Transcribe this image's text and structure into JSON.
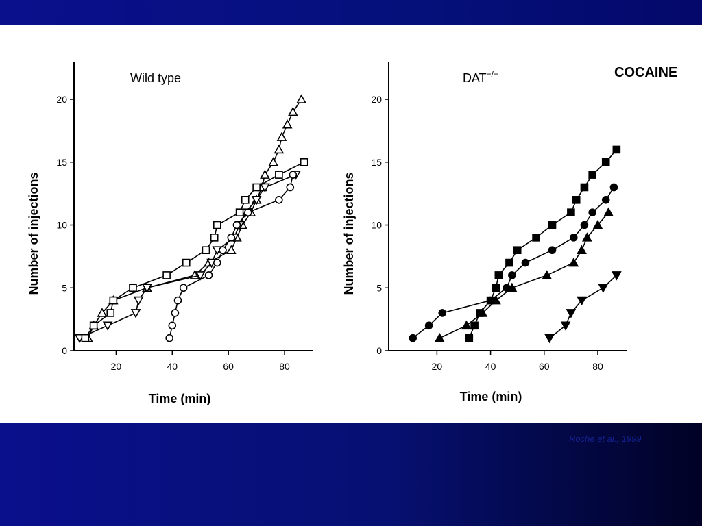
{
  "slide_title": "COCAINE",
  "citation": "Roche et al., 1999",
  "chart_data": [
    {
      "type": "line",
      "title": "Wild type",
      "xlabel": "Time (min)",
      "ylabel": "Number of injections",
      "xlim": [
        5,
        90
      ],
      "ylim": [
        0,
        23
      ],
      "xticks": [
        20,
        40,
        60,
        80
      ],
      "yticks": [
        0,
        5,
        10,
        15,
        20
      ],
      "grid": false,
      "legend": "none",
      "series": [
        {
          "marker": "triangle-up",
          "filled": false,
          "x": [
            10,
            12,
            15,
            19,
            31,
            48,
            53,
            61,
            63,
            65,
            68,
            70,
            72,
            73,
            76,
            78,
            79,
            81,
            83,
            86
          ],
          "y": [
            1,
            2,
            3,
            4,
            5,
            6,
            7,
            8,
            9,
            10,
            11,
            12,
            13,
            14,
            15,
            16,
            17,
            18,
            19,
            20
          ]
        },
        {
          "marker": "triangle-down",
          "filled": false,
          "x": [
            7,
            17,
            27,
            28,
            31,
            50,
            54,
            56,
            62,
            64,
            66,
            70,
            73,
            84
          ],
          "y": [
            1,
            2,
            3,
            4,
            5,
            6,
            7,
            8,
            9,
            10,
            11,
            12,
            13,
            14
          ]
        },
        {
          "marker": "circle",
          "filled": false,
          "x": [
            39,
            40,
            41,
            42,
            44,
            53,
            56,
            58,
            61,
            63,
            67,
            78,
            82,
            83
          ],
          "y": [
            1,
            2,
            3,
            4,
            5,
            6,
            7,
            8,
            9,
            10,
            11,
            12,
            13,
            14
          ]
        },
        {
          "marker": "square",
          "filled": false,
          "x": [
            9,
            12,
            18,
            19,
            26,
            38,
            45,
            52,
            55,
            56,
            64,
            66,
            70,
            78,
            87
          ],
          "y": [
            1,
            2,
            3,
            4,
            5,
            6,
            7,
            8,
            9,
            10,
            11,
            12,
            13,
            14,
            15
          ]
        }
      ]
    },
    {
      "type": "line",
      "title": "DAT",
      "title_superscript": "−/−",
      "xlabel": "Time (min)",
      "ylabel": "Number of injections",
      "xlim": [
        2,
        91
      ],
      "ylim": [
        0,
        23
      ],
      "xticks": [
        20,
        40,
        60,
        80
      ],
      "yticks": [
        0,
        5,
        10,
        15,
        20
      ],
      "grid": false,
      "legend": "none",
      "series": [
        {
          "marker": "circle",
          "filled": true,
          "x": [
            11,
            17,
            22,
            40,
            46,
            48,
            53,
            63,
            71,
            75,
            78,
            83,
            86
          ],
          "y": [
            1,
            2,
            3,
            4,
            5,
            6,
            7,
            8,
            9,
            10,
            11,
            12,
            13
          ]
        },
        {
          "marker": "square",
          "filled": true,
          "x": [
            32,
            34,
            36,
            40,
            42,
            43,
            47,
            50,
            57,
            63,
            70,
            72,
            75,
            78,
            83,
            87
          ],
          "y": [
            1,
            2,
            3,
            4,
            5,
            6,
            7,
            8,
            9,
            10,
            11,
            12,
            13,
            14,
            15,
            16
          ]
        },
        {
          "marker": "triangle-up",
          "filled": true,
          "x": [
            21,
            31,
            37,
            42,
            48,
            61,
            71,
            74,
            76,
            80,
            84
          ],
          "y": [
            1,
            2,
            3,
            4,
            5,
            6,
            7,
            8,
            9,
            10,
            11
          ]
        },
        {
          "marker": "triangle-down",
          "filled": true,
          "x": [
            62,
            68,
            70,
            74,
            82,
            87
          ],
          "y": [
            1,
            2,
            3,
            4,
            5,
            6
          ]
        }
      ]
    }
  ]
}
